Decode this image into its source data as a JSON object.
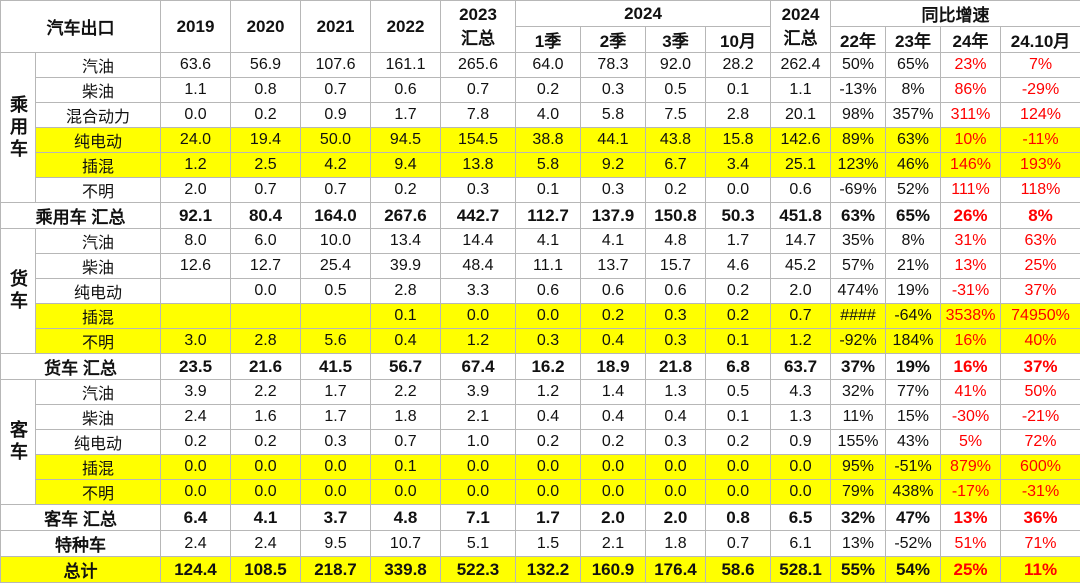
{
  "table": {
    "header": {
      "title": "汽车出口",
      "years": [
        "2019",
        "2020",
        "2021",
        "2022"
      ],
      "y2023": "2023",
      "y2023_sub": "汇总",
      "y2024": "2024",
      "periods": [
        "1季",
        "2季",
        "3季",
        "10月"
      ],
      "y2024_total": "2024",
      "y2024_total_sub": "汇总",
      "growth": "同比增速",
      "growth_cols": [
        "22年",
        "23年",
        "24年",
        "24.10月"
      ]
    },
    "sections": [
      {
        "group": "乘用车",
        "rows": [
          {
            "label": "汽油",
            "cells": [
              "63.6",
              "56.9",
              "107.6",
              "161.1",
              "265.6",
              "64.0",
              "78.3",
              "92.0",
              "28.2",
              "262.4",
              "50%",
              "65%",
              "23%",
              "7%"
            ]
          },
          {
            "label": "柴油",
            "cells": [
              "1.1",
              "0.8",
              "0.7",
              "0.6",
              "0.7",
              "0.2",
              "0.3",
              "0.5",
              "0.1",
              "1.1",
              "-13%",
              "8%",
              "86%",
              "-29%"
            ]
          },
          {
            "label": "混合动力",
            "cells": [
              "0.0",
              "0.2",
              "0.9",
              "1.7",
              "7.8",
              "4.0",
              "5.8",
              "7.5",
              "2.8",
              "20.1",
              "98%",
              "357%",
              "311%",
              "124%"
            ]
          },
          {
            "label": "纯电动",
            "cells": [
              "24.0",
              "19.4",
              "50.0",
              "94.5",
              "154.5",
              "38.8",
              "44.1",
              "43.8",
              "15.8",
              "142.6",
              "89%",
              "63%",
              "10%",
              "-11%"
            ]
          },
          {
            "label": "插混",
            "cells": [
              "1.2",
              "2.5",
              "4.2",
              "9.4",
              "13.8",
              "5.8",
              "9.2",
              "6.7",
              "3.4",
              "25.1",
              "123%",
              "46%",
              "146%",
              "193%"
            ]
          },
          {
            "label": "不明",
            "cells": [
              "2.0",
              "0.7",
              "0.7",
              "0.2",
              "0.3",
              "0.1",
              "0.3",
              "0.2",
              "0.0",
              "0.6",
              "-69%",
              "52%",
              "111%",
              "118%"
            ]
          }
        ],
        "total": {
          "label": "乘用车 汇总",
          "cells": [
            "92.1",
            "80.4",
            "164.0",
            "267.6",
            "442.7",
            "112.7",
            "137.9",
            "150.8",
            "50.3",
            "451.8",
            "63%",
            "65%",
            "26%",
            "8%"
          ]
        }
      },
      {
        "group": "货车",
        "rows": [
          {
            "label": "汽油",
            "cells": [
              "8.0",
              "6.0",
              "10.0",
              "13.4",
              "14.4",
              "4.1",
              "4.1",
              "4.8",
              "1.7",
              "14.7",
              "35%",
              "8%",
              "31%",
              "63%"
            ]
          },
          {
            "label": "柴油",
            "cells": [
              "12.6",
              "12.7",
              "25.4",
              "39.9",
              "48.4",
              "11.1",
              "13.7",
              "15.7",
              "4.6",
              "45.2",
              "57%",
              "21%",
              "13%",
              "25%"
            ]
          },
          {
            "label": "纯电动",
            "cells": [
              null,
              "0.0",
              "0.5",
              "2.8",
              "3.3",
              "0.6",
              "0.6",
              "0.6",
              "0.2",
              "2.0",
              "474%",
              "19%",
              "-31%",
              "37%"
            ]
          },
          {
            "label": "插混",
            "cells": [
              null,
              null,
              null,
              "0.1",
              "0.0",
              "0.0",
              "0.2",
              "0.3",
              "0.2",
              "0.7",
              "####",
              "-64%",
              "3538%",
              "74950%"
            ]
          },
          {
            "label": "不明",
            "cells": [
              "3.0",
              "2.8",
              "5.6",
              "0.4",
              "1.2",
              "0.3",
              "0.4",
              "0.3",
              "0.1",
              "1.2",
              "-92%",
              "184%",
              "16%",
              "40%"
            ]
          }
        ],
        "total": {
          "label": "货车 汇总",
          "cells": [
            "23.5",
            "21.6",
            "41.5",
            "56.7",
            "67.4",
            "16.2",
            "18.9",
            "21.8",
            "6.8",
            "63.7",
            "37%",
            "19%",
            "16%",
            "37%"
          ]
        }
      },
      {
        "group": "客车",
        "rows": [
          {
            "label": "汽油",
            "cells": [
              "3.9",
              "2.2",
              "1.7",
              "2.2",
              "3.9",
              "1.2",
              "1.4",
              "1.3",
              "0.5",
              "4.3",
              "32%",
              "77%",
              "41%",
              "50%"
            ]
          },
          {
            "label": "柴油",
            "cells": [
              "2.4",
              "1.6",
              "1.7",
              "1.8",
              "2.1",
              "0.4",
              "0.4",
              "0.4",
              "0.1",
              "1.3",
              "11%",
              "15%",
              "-30%",
              "-21%"
            ]
          },
          {
            "label": "纯电动",
            "cells": [
              "0.2",
              "0.2",
              "0.3",
              "0.7",
              "1.0",
              "0.2",
              "0.2",
              "0.3",
              "0.2",
              "0.9",
              "155%",
              "43%",
              "5%",
              "72%"
            ]
          },
          {
            "label": "插混",
            "cells": [
              "0.0",
              "0.0",
              "0.0",
              "0.1",
              "0.0",
              "0.0",
              "0.0",
              "0.0",
              "0.0",
              "0.0",
              "95%",
              "-51%",
              "879%",
              "600%"
            ]
          },
          {
            "label": "不明",
            "cells": [
              "0.0",
              "0.0",
              "0.0",
              "0.0",
              "0.0",
              "0.0",
              "0.0",
              "0.0",
              "0.0",
              "0.0",
              "79%",
              "438%",
              "-17%",
              "-31%"
            ]
          }
        ],
        "total": {
          "label": "客车 汇总",
          "cells": [
            "6.4",
            "4.1",
            "3.7",
            "4.8",
            "7.1",
            "1.7",
            "2.0",
            "2.0",
            "0.8",
            "6.5",
            "32%",
            "47%",
            "13%",
            "36%"
          ]
        }
      }
    ],
    "special": {
      "label": "特种车",
      "cells": [
        "2.4",
        "2.4",
        "9.5",
        "10.7",
        "5.1",
        "1.5",
        "2.1",
        "1.8",
        "0.7",
        "6.1",
        "13%",
        "-52%",
        "51%",
        "71%"
      ]
    },
    "grand_total": {
      "label": "总计",
      "cells": [
        "124.4",
        "108.5",
        "218.7",
        "339.8",
        "522.3",
        "132.2",
        "160.9",
        "176.4",
        "58.6",
        "528.1",
        "55%",
        "54%",
        "25%",
        "11%"
      ]
    }
  }
}
